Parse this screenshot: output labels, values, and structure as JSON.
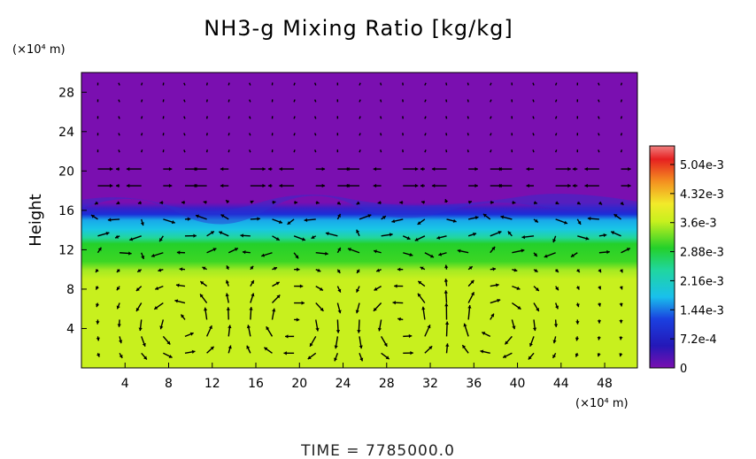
{
  "chart_data": {
    "type": "heatmap",
    "title": "NH3-g Mixing Ratio [kg/kg]",
    "ylabel": "Height",
    "y_unit": "(×10⁴ m)",
    "x_unit": "(×10⁴ m)",
    "xlim": [
      0,
      51
    ],
    "ylim": [
      0,
      30
    ],
    "xticks": [
      "4",
      "8",
      "12",
      "16",
      "20",
      "24",
      "28",
      "32",
      "36",
      "40",
      "44",
      "48"
    ],
    "yticks": [
      "4",
      "8",
      "12",
      "16",
      "20",
      "24",
      "28"
    ],
    "colorbar": {
      "range": [
        0,
        0.0055
      ],
      "ticks": [
        "0",
        "7.2e-4",
        "1.44e-3",
        "2.16e-3",
        "2.88e-3",
        "3.6e-3",
        "4.32e-3",
        "5.04e-3"
      ],
      "tick_values": [
        0,
        0.00072,
        0.00144,
        0.00216,
        0.00288,
        0.0036,
        0.00432,
        0.00504
      ]
    },
    "field_layers": [
      {
        "height_range": [
          0,
          10
        ],
        "approx_value": 0.0035,
        "description": "yellow-green"
      },
      {
        "height_range": [
          10,
          13
        ],
        "approx_value": 0.0029,
        "description": "green"
      },
      {
        "height_range": [
          13,
          16
        ],
        "approx_value": 0.0016,
        "description": "cyan"
      },
      {
        "height_range": [
          16,
          17.5
        ],
        "approx_value": 0.0006,
        "description": "blue"
      },
      {
        "height_range": [
          17.5,
          30
        ],
        "approx_value": 0.0,
        "description": "purple"
      }
    ],
    "vectors": "velocity arrows overlaid",
    "colors": {
      "purple": "#7a0fb0",
      "yellow_green": "#c8f01e",
      "green": "#24d02a",
      "cyan": "#19c7e6",
      "blue": "#1a2fd8"
    }
  },
  "footer": {
    "time_text": "TIME  =  7785000.0"
  }
}
